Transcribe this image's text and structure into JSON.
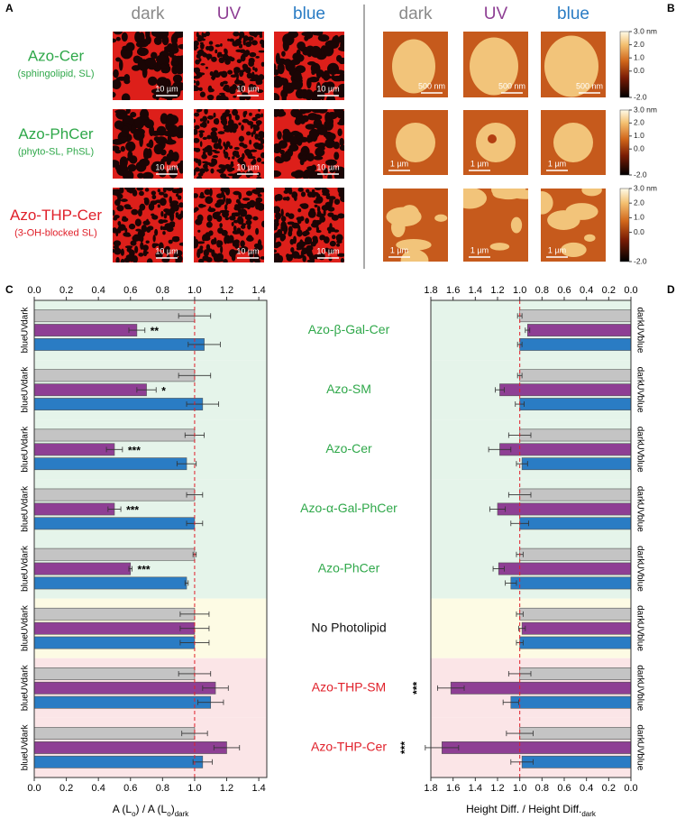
{
  "panel_labels": [
    "A",
    "B",
    "C",
    "D"
  ],
  "panel_a": {
    "columns": [
      {
        "label": "dark",
        "color": "#8a8a8a"
      },
      {
        "label": "UV",
        "color": "#8e3f94"
      },
      {
        "label": "blue",
        "color": "#2a7cc4"
      }
    ],
    "rows": [
      {
        "name": "Azo-Cer",
        "note": "(sphingolipid, SL)",
        "color": "#2fa84a"
      },
      {
        "name": "Azo-PhCer",
        "note": "(phyto-SL, PhSL)",
        "color": "#2fa84a"
      },
      {
        "name": "Azo-THP-Cer",
        "note": "(3-OH-blocked SL)",
        "color": "#e0202a"
      }
    ],
    "scale_bar": "10 µm"
  },
  "panel_b": {
    "columns": [
      {
        "label": "dark",
        "color": "#8a8a8a"
      },
      {
        "label": "UV",
        "color": "#8e3f94"
      },
      {
        "label": "blue",
        "color": "#2a7cc4"
      }
    ],
    "rows": [
      {
        "scale_bar": "500 nm"
      },
      {
        "scale_bar": "1 µm"
      },
      {
        "scale_bar": "1 µm"
      }
    ],
    "colorbar_lim": [
      -2,
      3
    ],
    "colorbar_ticks": [
      {
        "value": 3,
        "label": "3.0 nm"
      },
      {
        "value": 2,
        "label": "2.0"
      },
      {
        "value": 1,
        "label": "1.0"
      },
      {
        "value": 0,
        "label": "0.0"
      },
      {
        "value": -2,
        "label": "-2.0"
      }
    ]
  },
  "groups": [
    {
      "name": "Azo-β-Gal-Cer",
      "color": "#2fa84a",
      "band": "#e5f4ea"
    },
    {
      "name": "Azo-SM",
      "color": "#2fa84a",
      "band": "#e5f4ea"
    },
    {
      "name": "Azo-Cer",
      "color": "#2fa84a",
      "band": "#e5f4ea"
    },
    {
      "name": "Azo-α-Gal-PhCer",
      "color": "#2fa84a",
      "band": "#e5f4ea"
    },
    {
      "name": "Azo-PhCer",
      "color": "#2fa84a",
      "band": "#e5f4ea"
    },
    {
      "name": "No Photolipid",
      "color": "#111111",
      "band": "#fdfbe4"
    },
    {
      "name": "Azo-THP-SM",
      "color": "#e0202a",
      "band": "#fbe5e7"
    },
    {
      "name": "Azo-THP-Cer",
      "color": "#e0202a",
      "band": "#fbe5e7"
    }
  ],
  "chart_data": [
    {
      "type": "bar",
      "xlabel_parts": [
        {
          "text": "A (L"
        },
        {
          "text": "o",
          "sub": true
        },
        {
          "text": ") / A (L"
        },
        {
          "text": "o",
          "sub": true
        },
        {
          "text": ")"
        },
        {
          "text": "dark",
          "sub": true
        }
      ],
      "xlim": [
        0,
        1.45
      ],
      "xticks": [
        {
          "value": 0,
          "label": "0.0"
        },
        {
          "value": 0.2,
          "label": "0.2"
        },
        {
          "value": 0.4,
          "label": "0.4"
        },
        {
          "value": 0.6,
          "label": "0.6"
        },
        {
          "value": 0.8,
          "label": "0.8"
        },
        {
          "value": 1,
          "label": "1.0"
        },
        {
          "value": 1.2,
          "label": "1.2"
        },
        {
          "value": 1.4,
          "label": "1.4"
        }
      ],
      "reference_line": 1,
      "series": [
        {
          "name": "dark",
          "color": "#c4c4c4",
          "values": [
            1.0,
            1.0,
            1.0,
            1.0,
            1.0,
            1.0,
            1.0,
            1.0
          ],
          "errors": [
            0.1,
            0.1,
            0.06,
            0.05,
            0.01,
            0.09,
            0.1,
            0.08
          ],
          "significance": [
            null,
            null,
            null,
            null,
            null,
            null,
            null,
            null
          ]
        },
        {
          "name": "UV",
          "color": "#8e3f94",
          "values": [
            0.64,
            0.7,
            0.5,
            0.5,
            0.6,
            1.0,
            1.13,
            1.2
          ],
          "errors": [
            0.05,
            0.06,
            0.05,
            0.04,
            0.01,
            0.09,
            0.08,
            0.08
          ],
          "significance": [
            "**",
            "*",
            "***",
            "***",
            "***",
            null,
            null,
            null
          ]
        },
        {
          "name": "blue",
          "color": "#2a7cc4",
          "values": [
            1.06,
            1.05,
            0.95,
            1.0,
            0.95,
            1.0,
            1.1,
            1.05
          ],
          "errors": [
            0.1,
            0.1,
            0.06,
            0.05,
            0.01,
            0.09,
            0.08,
            0.06
          ],
          "significance": [
            null,
            null,
            null,
            null,
            null,
            null,
            null,
            null
          ]
        }
      ]
    },
    {
      "type": "bar",
      "xlabel_parts": [
        {
          "text": "Height Diff. / Height Diff."
        },
        {
          "text": "dark",
          "sub": true
        }
      ],
      "xlim": [
        1.8,
        0
      ],
      "xticks": [
        {
          "value": 1.8,
          "label": "1.8"
        },
        {
          "value": 1.6,
          "label": "1.6"
        },
        {
          "value": 1.4,
          "label": "1.4"
        },
        {
          "value": 1.2,
          "label": "1.2"
        },
        {
          "value": 1,
          "label": "1.0"
        },
        {
          "value": 0.8,
          "label": "0.8"
        },
        {
          "value": 0.6,
          "label": "0.6"
        },
        {
          "value": 0.4,
          "label": "0.4"
        },
        {
          "value": 0.2,
          "label": "0.2"
        },
        {
          "value": 0,
          "label": "0.0"
        }
      ],
      "reference_line": 1,
      "series": [
        {
          "name": "dark",
          "color": "#c4c4c4",
          "values": [
            1.0,
            1.0,
            1.0,
            1.0,
            1.0,
            1.0,
            1.0,
            1.0
          ],
          "errors": [
            0.02,
            0.02,
            0.1,
            0.1,
            0.03,
            0.03,
            0.1,
            0.12
          ],
          "significance": [
            null,
            null,
            null,
            null,
            null,
            null,
            null,
            null
          ]
        },
        {
          "name": "UV",
          "color": "#8e3f94",
          "values": [
            0.93,
            1.18,
            1.18,
            1.2,
            1.19,
            0.98,
            1.62,
            1.7
          ],
          "errors": [
            0.02,
            0.04,
            0.1,
            0.07,
            0.05,
            0.03,
            0.12,
            0.15
          ],
          "significance": [
            null,
            null,
            null,
            null,
            null,
            null,
            "***",
            "***"
          ]
        },
        {
          "name": "blue",
          "color": "#2a7cc4",
          "values": [
            1.0,
            1.0,
            0.98,
            1.0,
            1.08,
            1.0,
            1.08,
            0.98
          ],
          "errors": [
            0.02,
            0.04,
            0.05,
            0.08,
            0.05,
            0.03,
            0.07,
            0.1
          ],
          "significance": [
            null,
            null,
            null,
            null,
            null,
            null,
            null,
            null
          ]
        }
      ]
    }
  ]
}
